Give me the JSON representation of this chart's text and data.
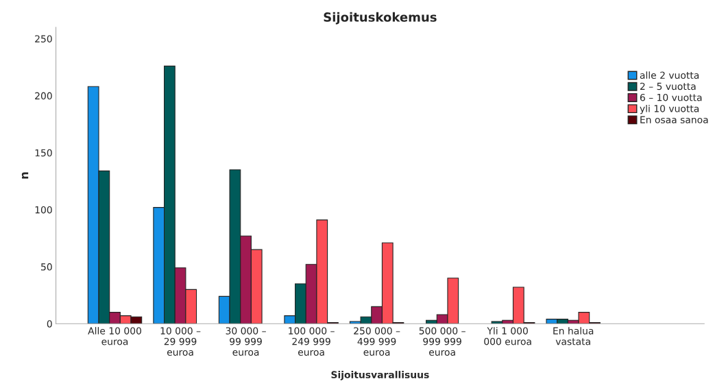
{
  "chart_data": {
    "type": "bar",
    "title": "Sijoituskokemus",
    "xlabel": "Sijoitusvarallisuus",
    "ylabel": "n",
    "categories": [
      "Alle 10 000\neuroa",
      "10 000 –\n29 999\neuroa",
      "30 000 –\n99 999\neuroa",
      "100 000 –\n249 999\neuroa",
      "250 000 –\n499 999\neuroa",
      "500 000 –\n999 999\neuroa",
      "Yli 1 000\n000 euroa",
      "En halua\nvastata"
    ],
    "series": [
      {
        "name": "alle 2 vuotta",
        "color": "#1490e6",
        "values": [
          208,
          102,
          24,
          7,
          2,
          null,
          null,
          4
        ]
      },
      {
        "name": "2 – 5 vuotta",
        "color": "#005b5a",
        "values": [
          134,
          226,
          135,
          35,
          6,
          3,
          2,
          4
        ]
      },
      {
        "name": "6 – 10 vuotta",
        "color": "#a11a52",
        "values": [
          10,
          49,
          77,
          52,
          15,
          8,
          3,
          3
        ]
      },
      {
        "name": "yli 10 vuotta",
        "color": "#fc4e56",
        "values": [
          7,
          30,
          65,
          91,
          71,
          40,
          32,
          10
        ]
      },
      {
        "name": "En osaa sanoa",
        "color": "#5a0008",
        "values": [
          6,
          null,
          null,
          1,
          1,
          null,
          1,
          1
        ]
      }
    ],
    "ylim": [
      0,
      260
    ],
    "yticks": [
      0,
      50,
      100,
      150,
      200,
      250
    ],
    "grid": false,
    "legend": "right"
  }
}
